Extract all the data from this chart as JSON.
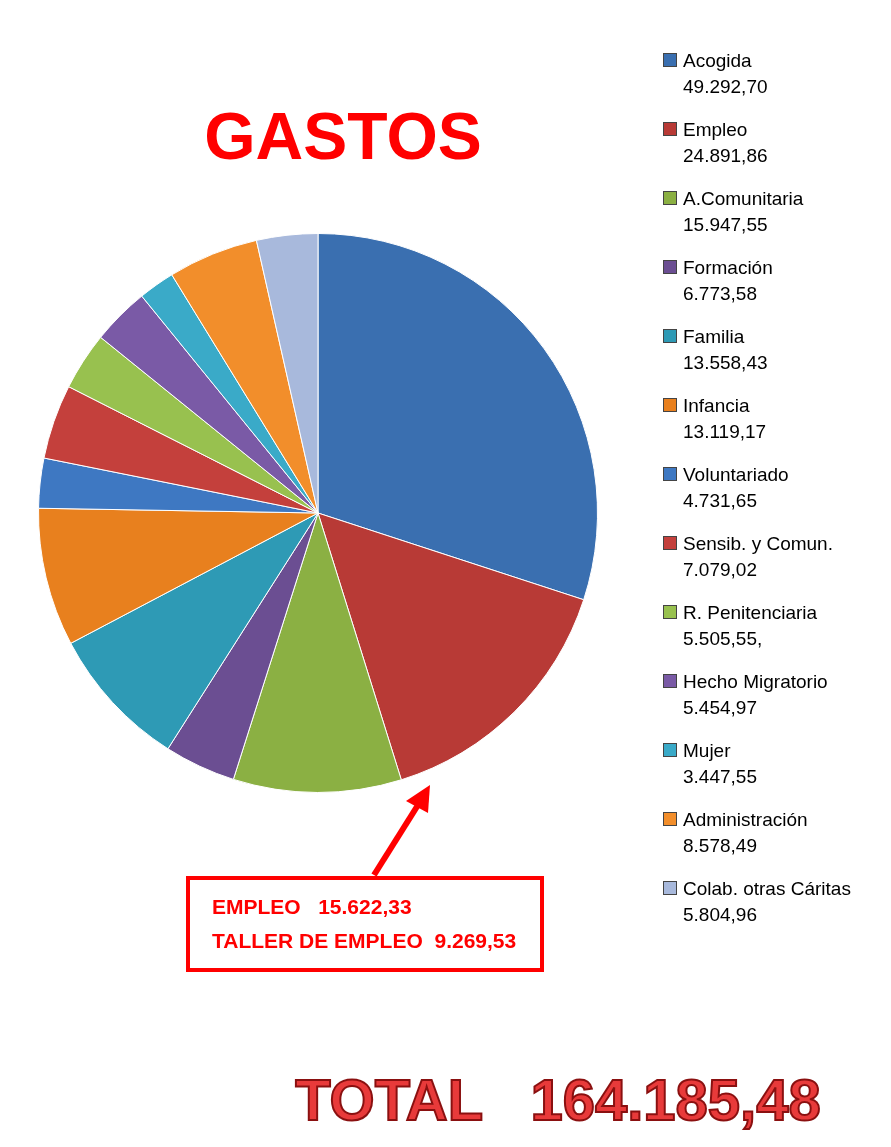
{
  "chart_data": {
    "type": "pie",
    "title": "GASTOS",
    "categories": [
      "Acogida",
      "Empleo",
      "A.Comunitaria",
      "Formación",
      "Familia",
      "Infancia",
      "Voluntariado",
      "Sensib. y Comun.",
      "R. Penitenciaria",
      "Hecho Migratorio",
      "Mujer",
      "Administración",
      "Colab. otras Cáritas"
    ],
    "values": [
      49292.7,
      24891.86,
      15947.55,
      6773.58,
      13558.43,
      13119.17,
      4731.65,
      7079.02,
      5505.55,
      5454.97,
      3447.55,
      8578.49,
      5804.96
    ],
    "value_labels": [
      "49.292,70",
      "24.891,86",
      "15.947,55",
      "6.773,58",
      "13.558,43",
      "13.119,17",
      "4.731,65",
      "7.079,02",
      "5.505,55,",
      "5.454,97",
      "3.447,55",
      "8.578,49",
      "5.804,96"
    ],
    "colors": [
      "#3a6fb0",
      "#b83a36",
      "#8bb043",
      "#6b4e92",
      "#2e9ab5",
      "#e8801e",
      "#3e78c2",
      "#c4403c",
      "#98c14f",
      "#7a5aa6",
      "#3aaac8",
      "#f28e2b",
      "#a8b9dc"
    ],
    "legend": "right",
    "annotations": [
      "EMPLEO   15.622,33",
      "TALLER DE EMPLEO  9.269,53",
      "TOTAL   164.185,48"
    ]
  }
}
